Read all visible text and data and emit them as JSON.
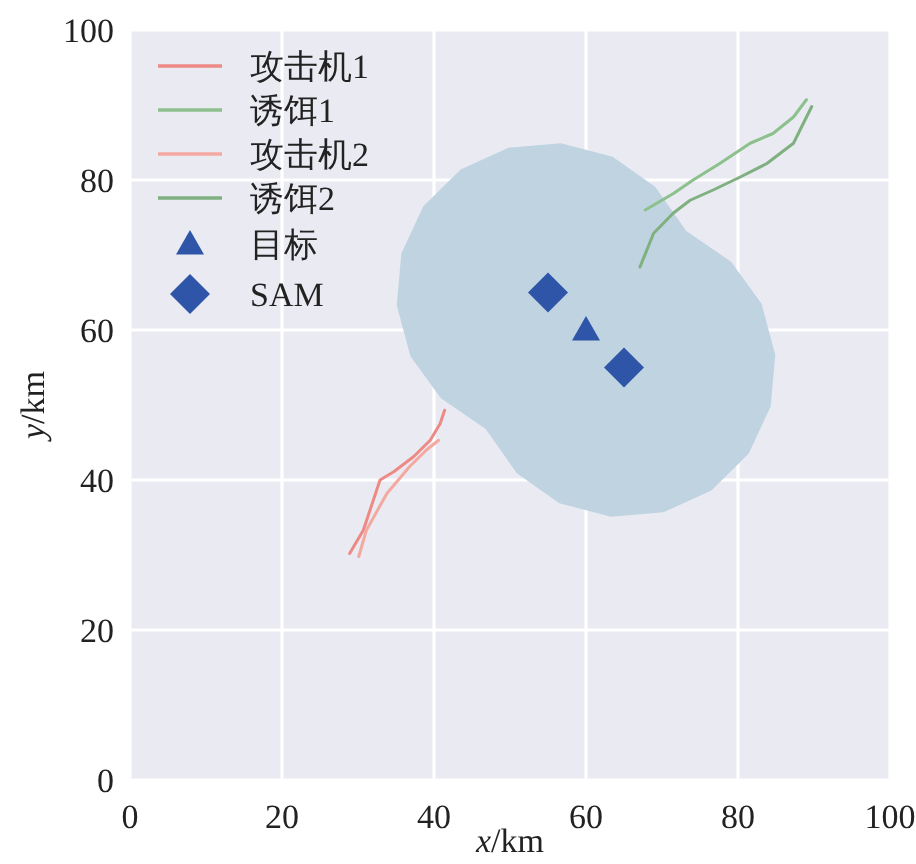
{
  "chart_data": {
    "type": "line",
    "xlabel": "*x*/km",
    "ylabel": "*y*/km",
    "xlim": [
      0,
      100
    ],
    "ylim": [
      0,
      100
    ],
    "xticks": [
      0,
      20,
      40,
      60,
      80,
      100
    ],
    "yticks": [
      0,
      20,
      40,
      60,
      80,
      100
    ],
    "grid": true,
    "legend": "top left",
    "series": [
      {
        "type": "area",
        "color": "#bfd3e1",
        "x": [
          73.2,
          69.1,
          63.5,
          56.7,
          49.8,
          43.5,
          38.6,
          35.7,
          35.1,
          36.9,
          40.9,
          46.8,
          50.9,
          56.5,
          63.3,
          70.2,
          76.5,
          81.4,
          84.3,
          84.9,
          83.1,
          79.1,
          73.2
        ],
        "values": [
          73.2,
          79.1,
          83.1,
          84.9,
          84.3,
          81.4,
          76.5,
          70.2,
          63.3,
          56.5,
          50.9,
          46.8,
          40.9,
          36.9,
          35.1,
          35.7,
          38.6,
          43.5,
          49.8,
          56.7,
          63.5,
          69.1,
          73.2
        ]
      },
      {
        "name": "攻击机1",
        "color": "#ee8a85",
        "x": [
          28.9,
          30.7,
          32.9,
          34.7,
          37.3,
          39.5,
          40.8,
          41.4
        ],
        "values": [
          30.2,
          33.3,
          40,
          41.1,
          43.1,
          45.3,
          47.5,
          49.3
        ]
      },
      {
        "name": "诱饵1",
        "color": "#8cc08c",
        "x": [
          67.8,
          71.5,
          74.1,
          77.6,
          81.6,
          84.6,
          87.3,
          89
        ],
        "values": [
          76,
          78.2,
          80,
          82.2,
          84.9,
          86.2,
          88.4,
          90.7
        ]
      },
      {
        "name": "攻击机2",
        "color": "#f4a9a0",
        "x": [
          30.1,
          31.1,
          33.8,
          36.8,
          39,
          40.6
        ],
        "values": [
          29.8,
          33.3,
          38.2,
          41.8,
          44,
          45.3
        ]
      },
      {
        "name": "诱饵2",
        "color": "#7fb07f",
        "x": [
          67.1,
          68.9,
          71.5,
          73.7,
          76.8,
          80.3,
          83.8,
          87.3,
          89.7
        ],
        "values": [
          68.4,
          72.9,
          75.6,
          77.3,
          78.7,
          80.4,
          82.2,
          84.9,
          89.8
        ]
      },
      {
        "name": "目标",
        "type": "scatter",
        "marker": "triangle",
        "color": "#2f55a8",
        "x": [
          60
        ],
        "values": [
          60
        ]
      },
      {
        "name": "SAM",
        "type": "scatter",
        "marker": "diamond",
        "color": "#2f55a8",
        "x": [
          55,
          65
        ],
        "values": [
          65,
          55
        ]
      }
    ]
  }
}
